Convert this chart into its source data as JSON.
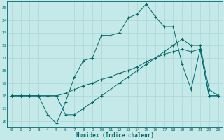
{
  "xlabel": "Humidex (Indice chaleur)",
  "bg_color": "#c5e8e8",
  "line_color": "#006868",
  "grid_color": "#a8d8d8",
  "xlim": [
    -0.5,
    23.5
  ],
  "ylim": [
    15.5,
    25.5
  ],
  "xticks": [
    0,
    1,
    2,
    3,
    4,
    5,
    6,
    7,
    8,
    9,
    10,
    11,
    12,
    13,
    14,
    15,
    16,
    17,
    18,
    19,
    20,
    21,
    22,
    23
  ],
  "yticks": [
    16,
    17,
    18,
    19,
    20,
    21,
    22,
    23,
    24,
    25
  ],
  "line1_x": [
    0,
    1,
    2,
    3,
    4,
    5,
    6,
    7,
    8,
    9,
    10,
    11,
    12,
    13,
    14,
    15,
    16,
    17,
    18,
    19,
    20,
    21,
    22,
    23
  ],
  "line1_y": [
    18,
    18,
    18,
    18,
    16.5,
    15.8,
    17.5,
    19.5,
    20.8,
    21,
    22.8,
    22.8,
    23,
    24.2,
    24.5,
    25.3,
    24.3,
    23.5,
    23.5,
    20.5,
    18.5,
    21.7,
    18,
    18
  ],
  "line2_x": [
    0,
    1,
    2,
    3,
    4,
    5,
    6,
    7,
    8,
    9,
    10,
    11,
    12,
    13,
    14,
    15,
    16,
    17,
    18,
    19,
    20,
    21,
    22,
    23
  ],
  "line2_y": [
    18,
    18,
    18,
    18,
    18,
    18,
    18.2,
    18.5,
    18.8,
    19.0,
    19.3,
    19.5,
    19.8,
    20.0,
    20.3,
    20.7,
    21.0,
    21.3,
    21.5,
    21.7,
    21.5,
    21.7,
    18.0,
    18.0
  ],
  "line3_x": [
    0,
    1,
    2,
    3,
    4,
    5,
    6,
    7,
    8,
    9,
    10,
    11,
    12,
    13,
    14,
    15,
    16,
    17,
    18,
    19,
    20,
    21,
    22,
    23
  ],
  "line3_y": [
    18,
    18,
    18,
    18,
    18,
    18,
    16.5,
    16.5,
    17.0,
    17.5,
    18.0,
    18.5,
    19.0,
    19.5,
    20.0,
    20.5,
    21.0,
    21.5,
    22.0,
    22.5,
    22.0,
    22.0,
    18.5,
    18.0
  ]
}
